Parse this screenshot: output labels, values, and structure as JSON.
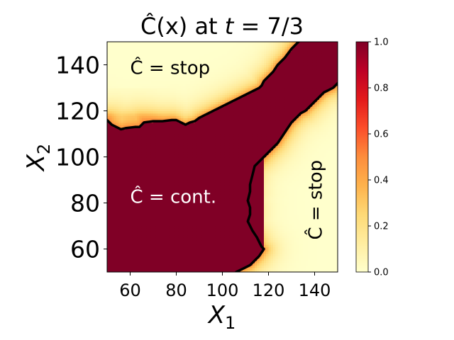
{
  "chart_data": {
    "type": "heatmap",
    "title": "Ĉ(x) at t = 7/3",
    "title_parts": {
      "func": "Ĉ(x) at ",
      "var": "t",
      "eq": " = 7/3"
    },
    "xlabel": {
      "main": "X",
      "sub": "1"
    },
    "ylabel": {
      "main": "X",
      "sub": "2"
    },
    "xlim": [
      50,
      150
    ],
    "ylim": [
      50,
      150
    ],
    "xticks": [
      60,
      80,
      100,
      120,
      140
    ],
    "yticks": [
      60,
      80,
      100,
      120,
      140
    ],
    "colorbar": {
      "range": [
        0.0,
        1.0
      ],
      "ticks": [
        "0.0",
        "0.2",
        "0.4",
        "0.6",
        "0.8",
        "1.0"
      ],
      "colormap": [
        "#ffffcc",
        "#ffeda0",
        "#fed976",
        "#feb24c",
        "#fd8d3c",
        "#fc4e2a",
        "#e31a1c",
        "#bd0026",
        "#800026"
      ]
    },
    "annotations": [
      {
        "text": "Ĉ = stop",
        "x": 60,
        "y": 136,
        "color": "#000000",
        "rotation": 0
      },
      {
        "text": "Ĉ = cont.",
        "x": 60,
        "y": 80,
        "color": "#ffffff",
        "rotation": 0
      },
      {
        "text": "Ĉ = stop",
        "x": 143,
        "y": 64,
        "color": "#000000",
        "rotation": -90
      }
    ],
    "boundaries": [
      [
        [
          50,
          116
        ],
        [
          52,
          114
        ],
        [
          54,
          113
        ],
        [
          56,
          112
        ],
        [
          58,
          112.5
        ],
        [
          62,
          113
        ],
        [
          64,
          113
        ],
        [
          66,
          115
        ],
        [
          70,
          115.5
        ],
        [
          74,
          115.5
        ],
        [
          78,
          116
        ],
        [
          80,
          116
        ],
        [
          82,
          115
        ],
        [
          84,
          114
        ],
        [
          86,
          115
        ],
        [
          88,
          115.5
        ],
        [
          90,
          117
        ],
        [
          92,
          118
        ],
        [
          94,
          119
        ],
        [
          96,
          120
        ],
        [
          98,
          121
        ],
        [
          100,
          122
        ],
        [
          102,
          123
        ],
        [
          104,
          124
        ],
        [
          106,
          125
        ],
        [
          108,
          126
        ],
        [
          110,
          127
        ],
        [
          112,
          128
        ],
        [
          114,
          129
        ],
        [
          116,
          130
        ],
        [
          117,
          131
        ],
        [
          118,
          133
        ],
        [
          120,
          135
        ],
        [
          122,
          137
        ],
        [
          124,
          140
        ],
        [
          127,
          143
        ],
        [
          130,
          147
        ],
        [
          133,
          150
        ]
      ],
      [
        [
          106,
          50
        ],
        [
          108,
          51
        ],
        [
          112,
          53
        ],
        [
          116,
          57
        ],
        [
          118,
          60
        ],
        [
          117,
          61
        ],
        [
          116,
          63
        ],
        [
          115,
          65
        ],
        [
          113,
          68
        ],
        [
          111,
          72
        ],
        [
          112,
          75
        ],
        [
          112,
          78
        ],
        [
          111,
          81
        ],
        [
          112,
          85
        ],
        [
          112,
          88
        ],
        [
          113,
          92
        ],
        [
          114,
          96
        ],
        [
          116,
          98
        ],
        [
          118,
          100
        ],
        [
          120,
          102
        ],
        [
          122,
          104
        ],
        [
          124,
          106
        ],
        [
          126,
          109
        ],
        [
          128,
          112
        ],
        [
          130,
          115
        ],
        [
          132,
          117
        ],
        [
          134,
          119
        ],
        [
          136,
          120
        ],
        [
          138,
          122
        ],
        [
          140,
          124
        ],
        [
          142,
          126
        ],
        [
          144,
          128
        ],
        [
          146,
          129
        ],
        [
          148,
          130
        ],
        [
          150,
          132
        ]
      ]
    ]
  }
}
